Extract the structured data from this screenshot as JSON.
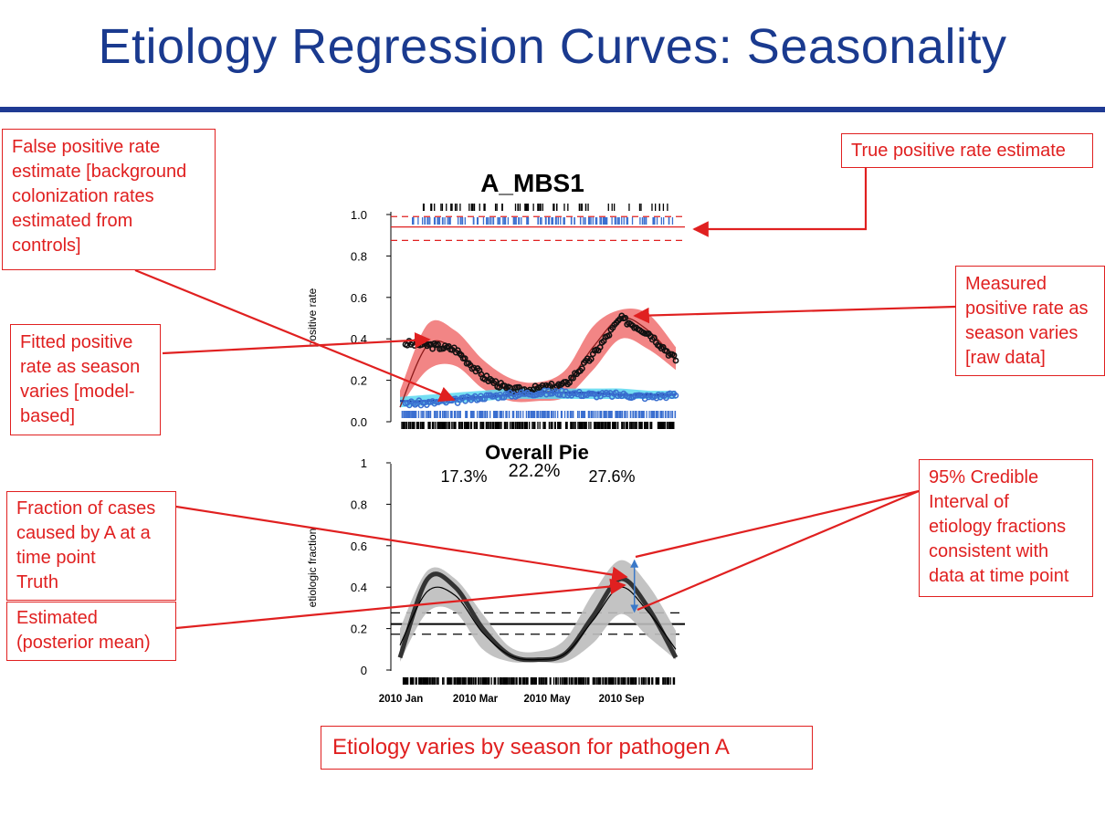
{
  "page": {
    "title": "Etiology Regression Curves: Seasonality",
    "footer_note": "Etiology varies by season for pathogen A"
  },
  "annotations": {
    "false_positive": [
      "False positive rate",
      "estimate [background",
      "colonization rates",
      "estimated from",
      "controls]"
    ],
    "true_positive": [
      "True positive rate estimate"
    ],
    "fitted_positive": [
      "Fitted positive",
      "rate as season",
      "varies [model-",
      "based]"
    ],
    "measured_positive": [
      "Measured",
      "positive rate as",
      "season varies",
      "[raw data]"
    ],
    "fraction_truth": [
      "Fraction of cases",
      "caused by A at a",
      "time point",
      "Truth"
    ],
    "estimated": [
      "Estimated",
      "(posterior mean)"
    ],
    "credible_interval": [
      "95% Credible",
      "Interval of",
      "etiology fractions",
      "consistent with",
      "data at time point"
    ]
  },
  "colors": {
    "title": "#1a3a8f",
    "annotation": "#e02020",
    "case_band": "#f07070",
    "control_band": "#5ad8f0",
    "control_points": "#3a6fd0",
    "etiology_band": "#bdbdbd",
    "ci_arrow": "#3a78c8"
  },
  "chart_data": [
    {
      "type": "line",
      "title": "A_MBS1",
      "ylabel": "positive rate",
      "ylim": [
        0,
        1
      ],
      "yticks": [
        "0.0",
        "0.2",
        "0.4",
        "0.6",
        "0.8",
        "1.0"
      ],
      "x": [
        0,
        0.1,
        0.2,
        0.3,
        0.4,
        0.5,
        0.6,
        0.7,
        0.8,
        0.9,
        1.0
      ],
      "series": [
        {
          "kind": "measured_cases",
          "values": [
            0.38,
            0.37,
            0.35,
            0.22,
            0.15,
            0.16,
            0.18,
            0.32,
            0.5,
            0.43,
            0.3
          ]
        },
        {
          "kind": "fitted_cases",
          "values": [
            0.07,
            0.37,
            0.35,
            0.22,
            0.15,
            0.14,
            0.18,
            0.36,
            0.5,
            0.44,
            0.3
          ]
        },
        {
          "kind": "fitted_cases_upper",
          "values": [
            0.15,
            0.47,
            0.44,
            0.3,
            0.21,
            0.19,
            0.25,
            0.46,
            0.54,
            0.52,
            0.36
          ]
        },
        {
          "kind": "fitted_cases_lower",
          "values": [
            0.07,
            0.25,
            0.27,
            0.16,
            0.1,
            0.1,
            0.12,
            0.25,
            0.4,
            0.35,
            0.25
          ]
        },
        {
          "kind": "measured_controls",
          "values": [
            0.09,
            0.09,
            0.1,
            0.12,
            0.13,
            0.14,
            0.14,
            0.13,
            0.13,
            0.12,
            0.13
          ]
        },
        {
          "kind": "fitted_controls",
          "values": [
            0.1,
            0.1,
            0.11,
            0.12,
            0.13,
            0.14,
            0.14,
            0.14,
            0.13,
            0.13,
            0.13
          ]
        },
        {
          "kind": "fitted_controls_upper",
          "values": [
            0.12,
            0.13,
            0.14,
            0.15,
            0.16,
            0.16,
            0.16,
            0.16,
            0.16,
            0.15,
            0.15
          ]
        },
        {
          "kind": "fitted_controls_lower",
          "values": [
            0.07,
            0.08,
            0.09,
            0.1,
            0.11,
            0.11,
            0.11,
            0.11,
            0.11,
            0.11,
            0.11
          ]
        }
      ],
      "reference_lines": [
        {
          "kind": "true_positive_rate",
          "value": 0.94,
          "style": "solid"
        },
        {
          "kind": "true_positive_upper",
          "value": 0.99,
          "style": "dashed"
        },
        {
          "kind": "true_positive_lower",
          "value": 0.875,
          "style": "dashed"
        }
      ],
      "grid": false
    },
    {
      "type": "line",
      "title": "Overall Pie",
      "pie_labels": [
        "17.3%",
        "22.2%",
        "27.6%"
      ],
      "ylabel": "etiologic fraction",
      "ylim": [
        0,
        1
      ],
      "yticks": [
        "0",
        "0.2",
        "0.4",
        "0.6",
        "0.8",
        "1"
      ],
      "xtick_labels": [
        "2010 Jan",
        "2010 Mar",
        "2010 May",
        "2010 Sep"
      ],
      "x": [
        0,
        0.1,
        0.2,
        0.3,
        0.4,
        0.5,
        0.6,
        0.7,
        0.8,
        0.9,
        1.0
      ],
      "series": [
        {
          "kind": "truth",
          "values": [
            0.06,
            0.44,
            0.4,
            0.2,
            0.07,
            0.05,
            0.08,
            0.26,
            0.44,
            0.3,
            0.06
          ]
        },
        {
          "kind": "posterior_mean",
          "values": [
            0.12,
            0.38,
            0.36,
            0.18,
            0.07,
            0.05,
            0.08,
            0.24,
            0.4,
            0.28,
            0.1
          ]
        },
        {
          "kind": "upper_95",
          "values": [
            0.2,
            0.48,
            0.44,
            0.27,
            0.11,
            0.09,
            0.15,
            0.37,
            0.53,
            0.41,
            0.19
          ]
        },
        {
          "kind": "lower_95",
          "values": [
            0.04,
            0.28,
            0.28,
            0.1,
            0.04,
            0.04,
            0.04,
            0.13,
            0.27,
            0.16,
            0.05
          ]
        }
      ],
      "reference_lines": [
        {
          "kind": "overall_estimate",
          "value": 0.222,
          "style": "solid"
        },
        {
          "kind": "overall_upper",
          "value": 0.276,
          "style": "dashed"
        },
        {
          "kind": "overall_lower",
          "value": 0.173,
          "style": "dashed"
        }
      ],
      "credible_interval_marker": {
        "x": 0.85,
        "low": 0.28,
        "high": 0.53
      },
      "grid": false
    }
  ]
}
